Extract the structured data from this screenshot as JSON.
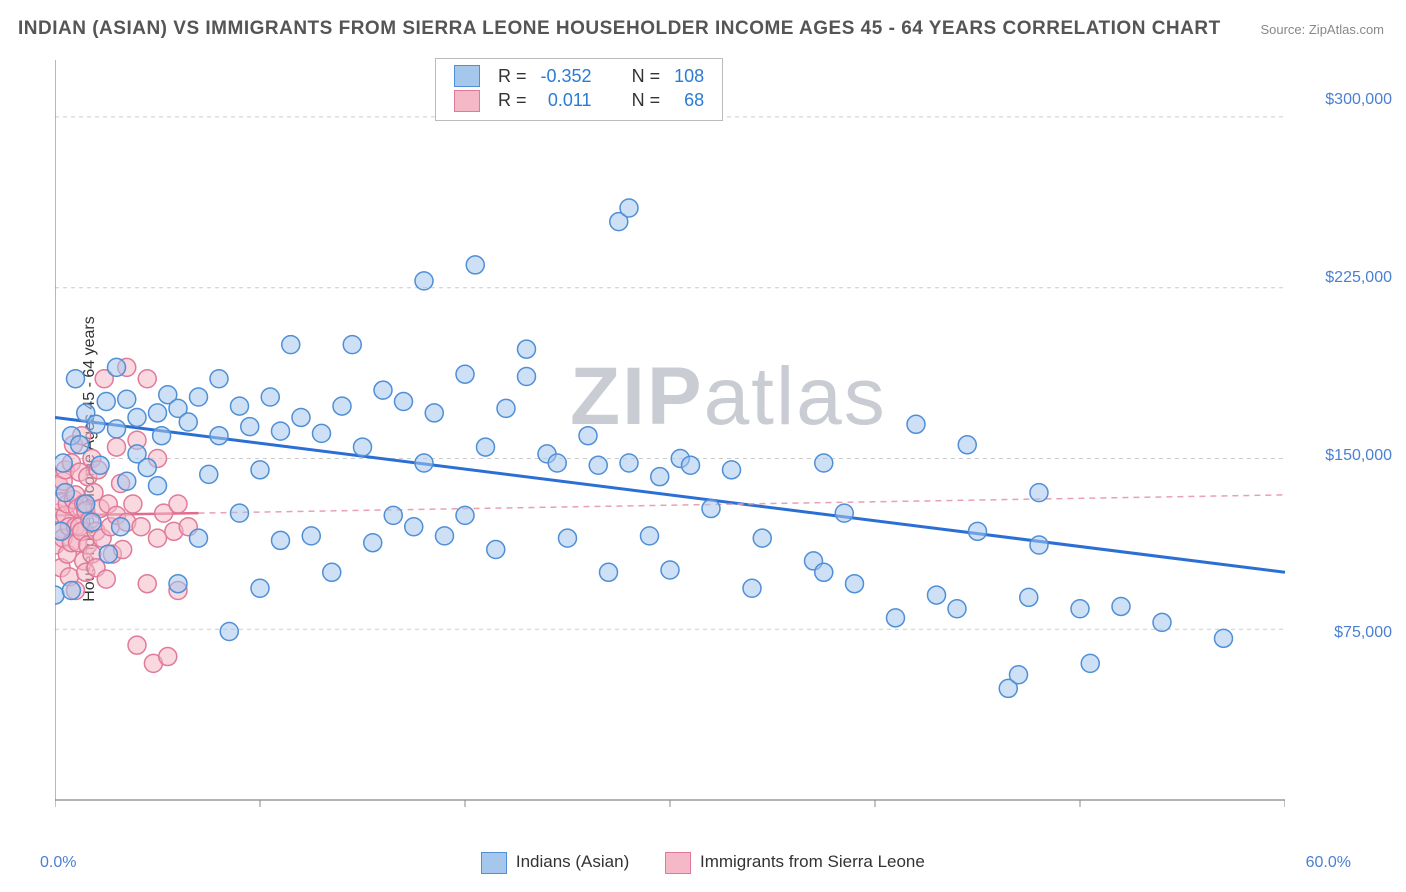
{
  "title": "INDIAN (ASIAN) VS IMMIGRANTS FROM SIERRA LEONE HOUSEHOLDER INCOME AGES 45 - 64 YEARS CORRELATION CHART",
  "source_label": "Source: ZipAtlas.com",
  "y_axis_label": "Householder Income Ages 45 - 64 years",
  "watermark_a": "ZIP",
  "watermark_b": "atlas",
  "chart": {
    "type": "scatter",
    "background_color": "#ffffff",
    "grid_color": "#cccccc",
    "grid_dash": "4 4",
    "axis_color": "#888888",
    "xlim": [
      0.0,
      60.0
    ],
    "ylim": [
      0,
      325000
    ],
    "x_ticks": [
      0.0,
      10.0,
      20.0,
      30.0,
      40.0,
      50.0,
      60.0
    ],
    "x_tick_labels": {
      "0": "0.0%",
      "60": "60.0%"
    },
    "y_ticks": [
      75000,
      150000,
      225000,
      300000
    ],
    "y_tick_labels": {
      "75000": "$75,000",
      "150000": "$150,000",
      "225000": "$225,000",
      "300000": "$300,000"
    },
    "tick_label_color": "#4a7fd4",
    "tick_label_fontsize": 16,
    "marker_radius": 9,
    "marker_stroke_width": 1.5,
    "series": [
      {
        "name": "Indians (Asian)",
        "fill": "#a6c7ec",
        "fill_opacity": 0.55,
        "stroke": "#4f8fd6",
        "R": "-0.352",
        "N": "108",
        "trend": {
          "x1": 0,
          "y1": 168000,
          "x2": 60,
          "y2": 100000,
          "color": "#2b6fd4",
          "width": 3,
          "dash": ""
        },
        "trend_ext": null,
        "points": [
          [
            0.0,
            90000
          ],
          [
            0.3,
            118000
          ],
          [
            0.4,
            148000
          ],
          [
            0.5,
            135000
          ],
          [
            0.8,
            92000
          ],
          [
            0.8,
            160000
          ],
          [
            1.0,
            185000
          ],
          [
            1.2,
            156000
          ],
          [
            1.5,
            170000
          ],
          [
            1.5,
            130000
          ],
          [
            1.8,
            122000
          ],
          [
            2.0,
            165000
          ],
          [
            2.2,
            147000
          ],
          [
            2.5,
            175000
          ],
          [
            2.6,
            108000
          ],
          [
            3.0,
            163000
          ],
          [
            3.0,
            190000
          ],
          [
            3.2,
            120000
          ],
          [
            3.5,
            140000
          ],
          [
            3.5,
            176000
          ],
          [
            4.0,
            152000
          ],
          [
            4.0,
            168000
          ],
          [
            4.5,
            146000
          ],
          [
            5.0,
            170000
          ],
          [
            5.0,
            138000
          ],
          [
            5.2,
            160000
          ],
          [
            5.5,
            178000
          ],
          [
            6.0,
            95000
          ],
          [
            6.0,
            172000
          ],
          [
            6.5,
            166000
          ],
          [
            7.0,
            115000
          ],
          [
            7.0,
            177000
          ],
          [
            7.5,
            143000
          ],
          [
            8.0,
            160000
          ],
          [
            8.0,
            185000
          ],
          [
            8.5,
            74000
          ],
          [
            9.0,
            126000
          ],
          [
            9.0,
            173000
          ],
          [
            9.5,
            164000
          ],
          [
            10.0,
            145000
          ],
          [
            10.0,
            93000
          ],
          [
            10.5,
            177000
          ],
          [
            11.0,
            114000
          ],
          [
            11.0,
            162000
          ],
          [
            11.5,
            200000
          ],
          [
            12.0,
            168000
          ],
          [
            12.5,
            116000
          ],
          [
            13.0,
            161000
          ],
          [
            13.5,
            100000
          ],
          [
            14.0,
            173000
          ],
          [
            14.5,
            200000
          ],
          [
            15.0,
            155000
          ],
          [
            15.5,
            113000
          ],
          [
            16.0,
            180000
          ],
          [
            16.5,
            125000
          ],
          [
            17.0,
            175000
          ],
          [
            17.5,
            120000
          ],
          [
            18.0,
            228000
          ],
          [
            18.0,
            148000
          ],
          [
            18.5,
            170000
          ],
          [
            19.0,
            116000
          ],
          [
            20.0,
            187000
          ],
          [
            20.0,
            125000
          ],
          [
            20.5,
            235000
          ],
          [
            21.0,
            155000
          ],
          [
            21.5,
            110000
          ],
          [
            22.0,
            172000
          ],
          [
            23.0,
            186000
          ],
          [
            23.0,
            198000
          ],
          [
            24.0,
            152000
          ],
          [
            24.5,
            148000
          ],
          [
            25.0,
            115000
          ],
          [
            26.0,
            160000
          ],
          [
            26.5,
            147000
          ],
          [
            27.0,
            100000
          ],
          [
            27.5,
            254000
          ],
          [
            28.0,
            148000
          ],
          [
            28.0,
            260000
          ],
          [
            29.0,
            116000
          ],
          [
            29.5,
            142000
          ],
          [
            30.0,
            101000
          ],
          [
            30.5,
            150000
          ],
          [
            31.0,
            147000
          ],
          [
            32.0,
            128000
          ],
          [
            33.0,
            145000
          ],
          [
            34.0,
            93000
          ],
          [
            34.5,
            115000
          ],
          [
            37.0,
            105000
          ],
          [
            37.5,
            148000
          ],
          [
            37.5,
            100000
          ],
          [
            38.5,
            126000
          ],
          [
            39.0,
            95000
          ],
          [
            41.0,
            80000
          ],
          [
            42.0,
            165000
          ],
          [
            43.0,
            90000
          ],
          [
            44.0,
            84000
          ],
          [
            44.5,
            156000
          ],
          [
            45.0,
            118000
          ],
          [
            46.5,
            49000
          ],
          [
            47.0,
            55000
          ],
          [
            47.5,
            89000
          ],
          [
            48.0,
            112000
          ],
          [
            48.0,
            135000
          ],
          [
            50.0,
            84000
          ],
          [
            50.5,
            60000
          ],
          [
            52.0,
            85000
          ],
          [
            54.0,
            78000
          ],
          [
            57.0,
            71000
          ]
        ]
      },
      {
        "name": "Immigrants from Sierra Leone",
        "fill": "#f4b8c6",
        "fill_opacity": 0.55,
        "stroke": "#e07a9a",
        "R": "0.011",
        "N": "68",
        "trend": {
          "x1": 0,
          "y1": 125000,
          "x2": 7,
          "y2": 126000,
          "color": "#e36b8e",
          "width": 2.5,
          "dash": ""
        },
        "trend_ext": {
          "x1": 7,
          "y1": 126000,
          "x2": 60,
          "y2": 134000,
          "color": "#e8a0b3",
          "width": 1.5,
          "dash": "6 5"
        },
        "points": [
          [
            0.0,
            112000
          ],
          [
            0.1,
            126000
          ],
          [
            0.2,
            138000
          ],
          [
            0.2,
            118000
          ],
          [
            0.3,
            131000
          ],
          [
            0.3,
            102000
          ],
          [
            0.4,
            140000
          ],
          [
            0.4,
            115000
          ],
          [
            0.5,
            125000
          ],
          [
            0.5,
            145000
          ],
          [
            0.6,
            108000
          ],
          [
            0.6,
            130000
          ],
          [
            0.7,
            120000
          ],
          [
            0.7,
            98000
          ],
          [
            0.8,
            148000
          ],
          [
            0.8,
            113000
          ],
          [
            0.9,
            132000
          ],
          [
            0.9,
            156000
          ],
          [
            1.0,
            120000
          ],
          [
            1.0,
            134000
          ],
          [
            1.0,
            92000
          ],
          [
            1.1,
            128000
          ],
          [
            1.1,
            113000
          ],
          [
            1.2,
            144000
          ],
          [
            1.2,
            120000
          ],
          [
            1.3,
            160000
          ],
          [
            1.3,
            118000
          ],
          [
            1.4,
            105000
          ],
          [
            1.4,
            130000
          ],
          [
            1.5,
            100000
          ],
          [
            1.5,
            127000
          ],
          [
            1.6,
            142000
          ],
          [
            1.6,
            112000
          ],
          [
            1.7,
            123000
          ],
          [
            1.8,
            150000
          ],
          [
            1.8,
            108000
          ],
          [
            1.9,
            135000
          ],
          [
            2.0,
            118000
          ],
          [
            2.0,
            102000
          ],
          [
            2.1,
            145000
          ],
          [
            2.2,
            128000
          ],
          [
            2.3,
            115000
          ],
          [
            2.4,
            185000
          ],
          [
            2.5,
            97000
          ],
          [
            2.6,
            130000
          ],
          [
            2.7,
            120000
          ],
          [
            2.8,
            108000
          ],
          [
            3.0,
            155000
          ],
          [
            3.0,
            125000
          ],
          [
            3.2,
            139000
          ],
          [
            3.3,
            110000
          ],
          [
            3.5,
            122000
          ],
          [
            3.5,
            190000
          ],
          [
            3.8,
            130000
          ],
          [
            4.0,
            158000
          ],
          [
            4.0,
            68000
          ],
          [
            4.2,
            120000
          ],
          [
            4.5,
            185000
          ],
          [
            4.5,
            95000
          ],
          [
            4.8,
            60000
          ],
          [
            5.0,
            115000
          ],
          [
            5.0,
            150000
          ],
          [
            5.3,
            126000
          ],
          [
            5.5,
            63000
          ],
          [
            5.8,
            118000
          ],
          [
            6.0,
            92000
          ],
          [
            6.0,
            130000
          ],
          [
            6.5,
            120000
          ]
        ]
      }
    ]
  },
  "legend_top": {
    "rows": [
      {
        "swatch_fill": "#a6c7ec",
        "swatch_stroke": "#4f8fd6",
        "r_label": "R =",
        "r_val": "-0.352",
        "n_label": "N =",
        "n_val": "108"
      },
      {
        "swatch_fill": "#f4b8c6",
        "swatch_stroke": "#e07a9a",
        "r_label": "R =",
        "r_val": "0.011",
        "n_label": "N =",
        "n_val": "68"
      }
    ]
  },
  "legend_bottom": {
    "items": [
      {
        "swatch_fill": "#a6c7ec",
        "swatch_stroke": "#4f8fd6",
        "label": "Indians (Asian)"
      },
      {
        "swatch_fill": "#f4b8c6",
        "swatch_stroke": "#e07a9a",
        "label": "Immigrants from Sierra Leone"
      }
    ]
  }
}
